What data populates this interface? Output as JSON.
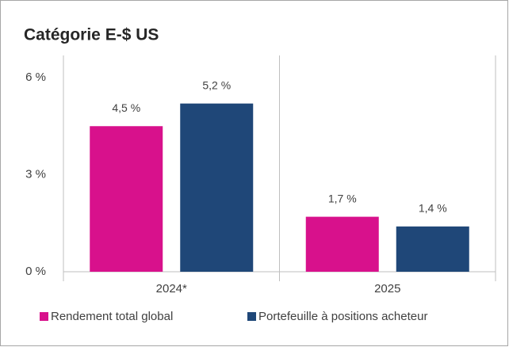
{
  "chart_data": {
    "type": "bar",
    "title": "Catégorie E-$ US",
    "categories": [
      "2024*",
      "2025"
    ],
    "series": [
      {
        "name": "Rendement total global",
        "color": "#d8118c",
        "values": [
          4.5,
          1.7
        ],
        "value_labels": [
          "4,5 %",
          "1,7 %"
        ]
      },
      {
        "name": "Portefeuille à positions acheteur",
        "color": "#1f4778",
        "values": [
          5.2,
          1.4
        ],
        "value_labels": [
          "5,2 %",
          "1,4 %"
        ]
      }
    ],
    "ylim": [
      0,
      6
    ],
    "yticks": [
      {
        "value": 0,
        "label": "0 %"
      },
      {
        "value": 3,
        "label": "3 %"
      },
      {
        "value": 6,
        "label": "6 %"
      }
    ],
    "grid": false,
    "legend": "bottom"
  }
}
